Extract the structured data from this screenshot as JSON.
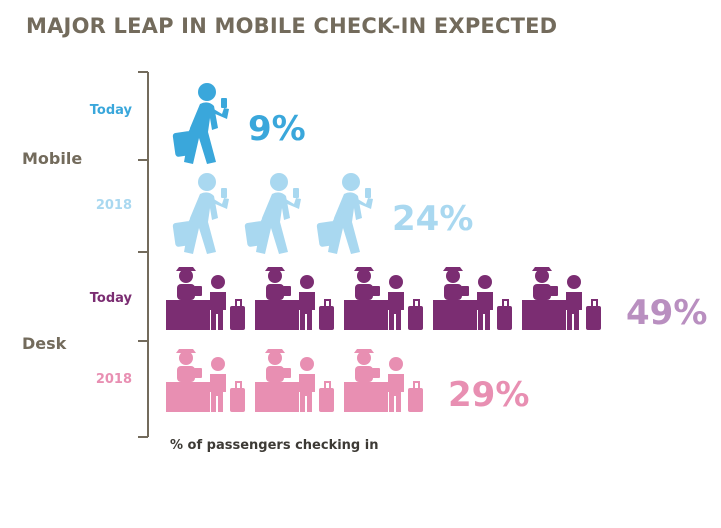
{
  "title": "MAJOR LEAP IN MOBILE CHECK-IN EXPECTED",
  "chart_data": {
    "type": "bar",
    "title": "MAJOR LEAP IN MOBILE CHECK-IN EXPECTED",
    "xlabel": "% of passengers checking in",
    "groups": [
      "Mobile",
      "Desk"
    ],
    "series": [
      {
        "group": "Mobile",
        "period": "Today",
        "value": 9,
        "value_label": "9%",
        "icons": 1,
        "color": "#3aa7db",
        "label_color": "#3aa7db"
      },
      {
        "group": "Mobile",
        "period": "2018",
        "value": 24,
        "value_label": "24%",
        "icons": 3,
        "color": "#a9d8f0",
        "label_color": "#a9d8f0"
      },
      {
        "group": "Desk",
        "period": "Today",
        "value": 49,
        "value_label": "49%",
        "icons": 5,
        "color": "#7b2d72",
        "label_color": "#7b2d72"
      },
      {
        "group": "Desk",
        "period": "2018",
        "value": 29,
        "value_label": "29%",
        "icons": 3,
        "color": "#e88fb2",
        "label_color": "#e88fb2"
      }
    ],
    "value_label_colors": {
      "Today-Desk": "#b98fc0"
    },
    "group_label_color": "#736b5c",
    "axis_color": "#736b5c"
  }
}
